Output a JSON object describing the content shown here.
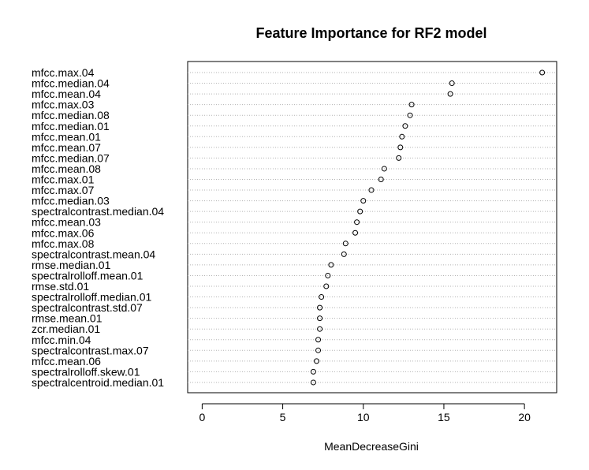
{
  "chart_data": {
    "type": "scatter",
    "title": "Feature Importance for RF2 model",
    "xlabel": "MeanDecreaseGini",
    "ylabel": "",
    "xlim": [
      -0.9,
      22.0
    ],
    "xticks": [
      0,
      5,
      10,
      15,
      20
    ],
    "grid": "dotted horizontal lines per feature",
    "marker": "open circle",
    "features": [
      "mfcc.max.04",
      "mfcc.median.04",
      "mfcc.mean.04",
      "mfcc.max.03",
      "mfcc.median.08",
      "mfcc.median.01",
      "mfcc.mean.01",
      "mfcc.mean.07",
      "mfcc.median.07",
      "mfcc.mean.08",
      "mfcc.max.01",
      "mfcc.max.07",
      "mfcc.median.03",
      "spectralcontrast.median.04",
      "mfcc.mean.03",
      "mfcc.max.06",
      "mfcc.max.08",
      "spectralcontrast.mean.04",
      "rmse.median.01",
      "spectralrolloff.mean.01",
      "rmse.std.01",
      "spectralrolloff.median.01",
      "spectralcontrast.std.07",
      "rmse.mean.01",
      "zcr.median.01",
      "mfcc.min.04",
      "spectralcontrast.max.07",
      "mfcc.mean.06",
      "spectralrolloff.skew.01",
      "spectralcentroid.median.01"
    ],
    "values": [
      21.1,
      15.5,
      15.4,
      13.0,
      12.9,
      12.6,
      12.4,
      12.3,
      12.2,
      11.3,
      11.1,
      10.5,
      10.0,
      9.8,
      9.6,
      9.5,
      8.9,
      8.8,
      8.0,
      7.8,
      7.7,
      7.4,
      7.3,
      7.3,
      7.3,
      7.2,
      7.2,
      7.1,
      6.9,
      6.9
    ]
  }
}
